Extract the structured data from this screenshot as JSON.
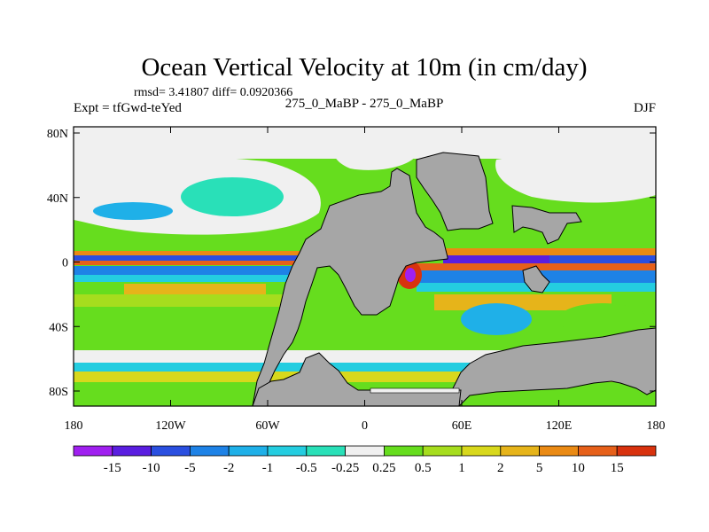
{
  "chart_data": {
    "type": "heatmap",
    "title": "Ocean Vertical Velocity at 10m (in cm/day)",
    "stats_line": "rmsd= 3.41807 diff= 0.0920366",
    "expt_label": "Expt = tfGwd-teYed",
    "center_label": "275_0_MaBP - 275_0_MaBP",
    "season": "DJF",
    "x_ticks": [
      "180",
      "120W",
      "60W",
      "0",
      "60E",
      "120E",
      "180"
    ],
    "y_ticks": [
      "80N",
      "40N",
      "0",
      "40S",
      "80S"
    ],
    "lon_range": [
      -180,
      180
    ],
    "lat_range": [
      -90,
      90
    ],
    "colorbar": {
      "labels": [
        "-15",
        "-10",
        "-5",
        "-2",
        "-1",
        "-0.5",
        "-0.25",
        "0.25",
        "0.5",
        "1",
        "2",
        "5",
        "10",
        "15"
      ],
      "colors": [
        "#a020f0",
        "#5a1ee0",
        "#2a4fe0",
        "#1e82e6",
        "#1fb0e8",
        "#24cde0",
        "#29e0b8",
        "#f0f0f0",
        "#66dd1e",
        "#a6dd1e",
        "#d8d81c",
        "#e6b41a",
        "#ea8a14",
        "#e6601a",
        "#d8320e"
      ]
    }
  }
}
